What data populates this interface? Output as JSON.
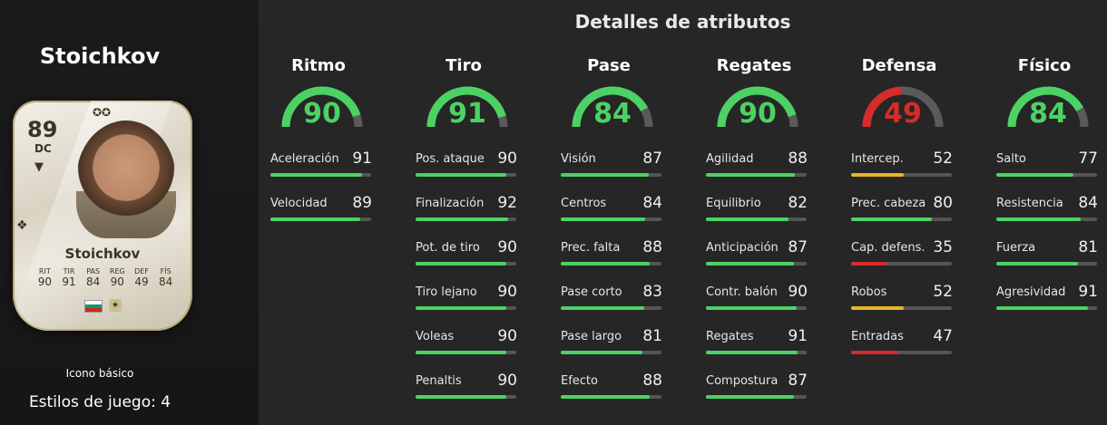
{
  "player": {
    "name": "Stoichkov",
    "card_name": "Stoichkov",
    "rating": "89",
    "position": "DC",
    "card_type": "Icono básico",
    "playstyles": "Estilos de juego: 4",
    "stat_labels": [
      "RIT",
      "TIR",
      "PAS",
      "REG",
      "DEF",
      "FÍS"
    ],
    "stat_values": [
      "90",
      "91",
      "84",
      "90",
      "49",
      "84"
    ]
  },
  "header": {
    "title": "Detalles de atributos"
  },
  "colors": {
    "high": "#4cd264",
    "mid": "#e8b52a",
    "low": "#d62b2b",
    "track": "#555555"
  },
  "categories": [
    {
      "name": "Ritmo",
      "value": 90,
      "stats": [
        {
          "name": "Aceleración",
          "value": 91
        },
        {
          "name": "Velocidad",
          "value": 89
        }
      ]
    },
    {
      "name": "Tiro",
      "value": 91,
      "stats": [
        {
          "name": "Pos. ataque",
          "value": 90
        },
        {
          "name": "Finalización",
          "value": 92
        },
        {
          "name": "Pot. de tiro",
          "value": 90
        },
        {
          "name": "Tiro lejano",
          "value": 90
        },
        {
          "name": "Voleas",
          "value": 90
        },
        {
          "name": "Penaltis",
          "value": 90
        }
      ]
    },
    {
      "name": "Pase",
      "value": 84,
      "stats": [
        {
          "name": "Visión",
          "value": 87
        },
        {
          "name": "Centros",
          "value": 84
        },
        {
          "name": "Prec. falta",
          "value": 88
        },
        {
          "name": "Pase corto",
          "value": 83
        },
        {
          "name": "Pase largo",
          "value": 81
        },
        {
          "name": "Efecto",
          "value": 88
        }
      ]
    },
    {
      "name": "Regates",
      "value": 90,
      "stats": [
        {
          "name": "Agilidad",
          "value": 88
        },
        {
          "name": "Equilibrio",
          "value": 82
        },
        {
          "name": "Anticipación",
          "value": 87
        },
        {
          "name": "Contr. balón",
          "value": 90
        },
        {
          "name": "Regates",
          "value": 91
        },
        {
          "name": "Compostura",
          "value": 87
        }
      ]
    },
    {
      "name": "Defensa",
      "value": 49,
      "stats": [
        {
          "name": "Intercep.",
          "value": 52
        },
        {
          "name": "Prec. cabeza",
          "value": 80
        },
        {
          "name": "Cap. defens.",
          "value": 35
        },
        {
          "name": "Robos",
          "value": 52
        },
        {
          "name": "Entradas",
          "value": 47
        }
      ]
    },
    {
      "name": "Físico",
      "value": 84,
      "stats": [
        {
          "name": "Salto",
          "value": 77
        },
        {
          "name": "Resistencia",
          "value": 84
        },
        {
          "name": "Fuerza",
          "value": 81
        },
        {
          "name": "Agresividad",
          "value": 91
        }
      ]
    }
  ]
}
